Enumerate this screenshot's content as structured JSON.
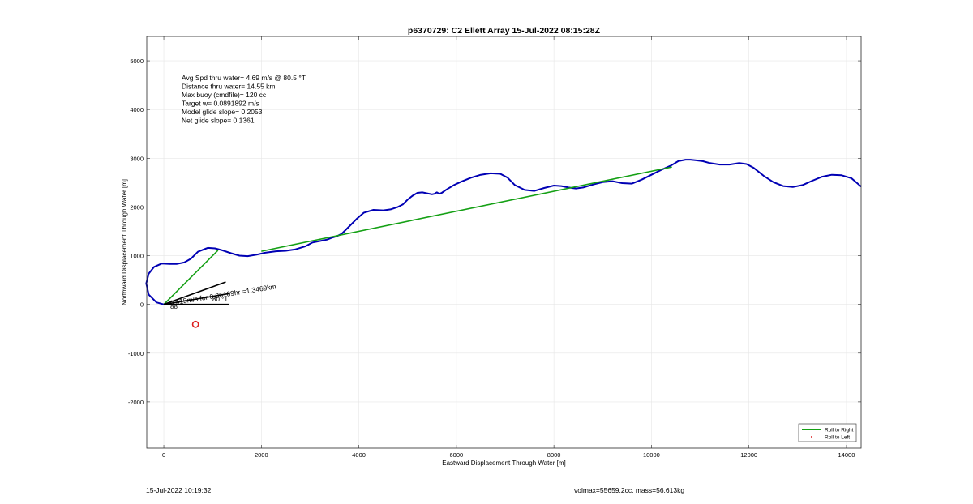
{
  "footer": {
    "timestamp": "15-Jul-2022 10:19:32",
    "summary": "volmax=55659.2cc, mass=56.613kg"
  },
  "colors": {
    "track": "#0000b4",
    "roll_right": "#14a014",
    "roll_left": "#dc1e1e",
    "current": "#000000",
    "grid": "#e6e6e6"
  },
  "chart_data": {
    "type": "line",
    "title": "p6370729: C2 Ellett Array 15-Jul-2022 08:15:28Z",
    "xlabel": "Eastward Displacement Through Water [m]",
    "ylabel": "Northward Displacement Through Water [m]",
    "xlim": [
      -350,
      14300
    ],
    "ylim": [
      -2950,
      5500
    ],
    "xticks": [
      0,
      2000,
      4000,
      6000,
      8000,
      10000,
      12000,
      14000
    ],
    "xtick_labels": [
      "0",
      "2000",
      "4000",
      "6000",
      "8000",
      "10000",
      "12000",
      "14000"
    ],
    "yticks": [
      -2000,
      -1000,
      0,
      1000,
      2000,
      3000,
      4000,
      5000
    ],
    "ytick_labels": [
      "-2000",
      "-1000",
      "0",
      "1000",
      "2000",
      "3000",
      "4000",
      "5000"
    ],
    "grid": true,
    "legend_position": "bottom-right",
    "annotations": [
      "Avg Spd thru water=  4.69 m/s @  80.5 °T",
      "Distance thru water= 14.55 km",
      "Max buoy (cmdfile)= 120 cc",
      "Target w= 0.0891892 m/s",
      "Model glide slope= 0.2053",
      "Net glide slope= 0.1361"
    ],
    "current_label": "0.415m/s for 0.86109hr =1.3469km",
    "current_angle_labels": [
      "80 °T",
      "88"
    ],
    "series": [
      {
        "name": "",
        "role": "track",
        "x": [
          0,
          -150,
          -310,
          -360,
          -310,
          -200,
          -40,
          120,
          260,
          420,
          560,
          700,
          900,
          1050,
          1200,
          1380,
          1550,
          1720,
          1900,
          2080,
          2300,
          2500,
          2700,
          2900,
          3050,
          3200,
          3350,
          3450,
          3550,
          3650,
          3800,
          3950,
          4100,
          4300,
          4500,
          4650,
          4800,
          4900,
          5000,
          5100,
          5200,
          5300,
          5400,
          5500,
          5550,
          5600,
          5650,
          5700,
          5800,
          5950,
          6100,
          6300,
          6500,
          6700,
          6900,
          7050,
          7200,
          7400,
          7600,
          7800,
          8000,
          8150,
          8300,
          8450,
          8600,
          8800,
          9000,
          9200,
          9400,
          9600,
          9800,
          10000,
          10200,
          10400,
          10550,
          10700,
          10800,
          10900,
          11050,
          11200,
          11400,
          11600,
          11800,
          11950,
          12100,
          12300,
          12500,
          12700,
          12900,
          13100,
          13300,
          13500,
          13700,
          13900,
          14100,
          14300
        ],
        "y": [
          0,
          40,
          200,
          430,
          630,
          770,
          840,
          830,
          830,
          860,
          940,
          1080,
          1160,
          1150,
          1110,
          1050,
          1000,
          990,
          1020,
          1060,
          1090,
          1100,
          1130,
          1190,
          1270,
          1300,
          1330,
          1370,
          1400,
          1450,
          1600,
          1750,
          1880,
          1940,
          1930,
          1950,
          2000,
          2050,
          2150,
          2230,
          2290,
          2300,
          2280,
          2260,
          2270,
          2300,
          2270,
          2290,
          2360,
          2450,
          2520,
          2600,
          2660,
          2690,
          2680,
          2600,
          2450,
          2350,
          2330,
          2390,
          2440,
          2430,
          2400,
          2380,
          2400,
          2460,
          2510,
          2530,
          2490,
          2480,
          2560,
          2660,
          2760,
          2850,
          2940,
          2970,
          2970,
          2960,
          2940,
          2900,
          2870,
          2870,
          2900,
          2880,
          2800,
          2640,
          2510,
          2430,
          2410,
          2450,
          2540,
          2620,
          2660,
          2650,
          2590,
          2420
        ]
      },
      {
        "name": "Roll to Right",
        "role": "roll_right",
        "segments": [
          {
            "x": [
              0,
              1110
            ],
            "y": [
              0,
              1110
            ]
          },
          {
            "x": [
              2000,
              10420
            ],
            "y": [
              1090,
              2820
            ]
          }
        ]
      },
      {
        "name": "Roll to Left",
        "role": "roll_left",
        "points": [
          {
            "x": 650,
            "y": -410
          }
        ]
      },
      {
        "name": "",
        "role": "current",
        "segments": [
          {
            "x": [
              0,
              1340
            ],
            "y": [
              0,
              0
            ]
          },
          {
            "x": [
              0,
              1270
            ],
            "y": [
              0,
              460
            ]
          },
          {
            "x": [
              0,
              1330
            ],
            "y": [
              0,
              220
            ]
          }
        ]
      }
    ]
  }
}
